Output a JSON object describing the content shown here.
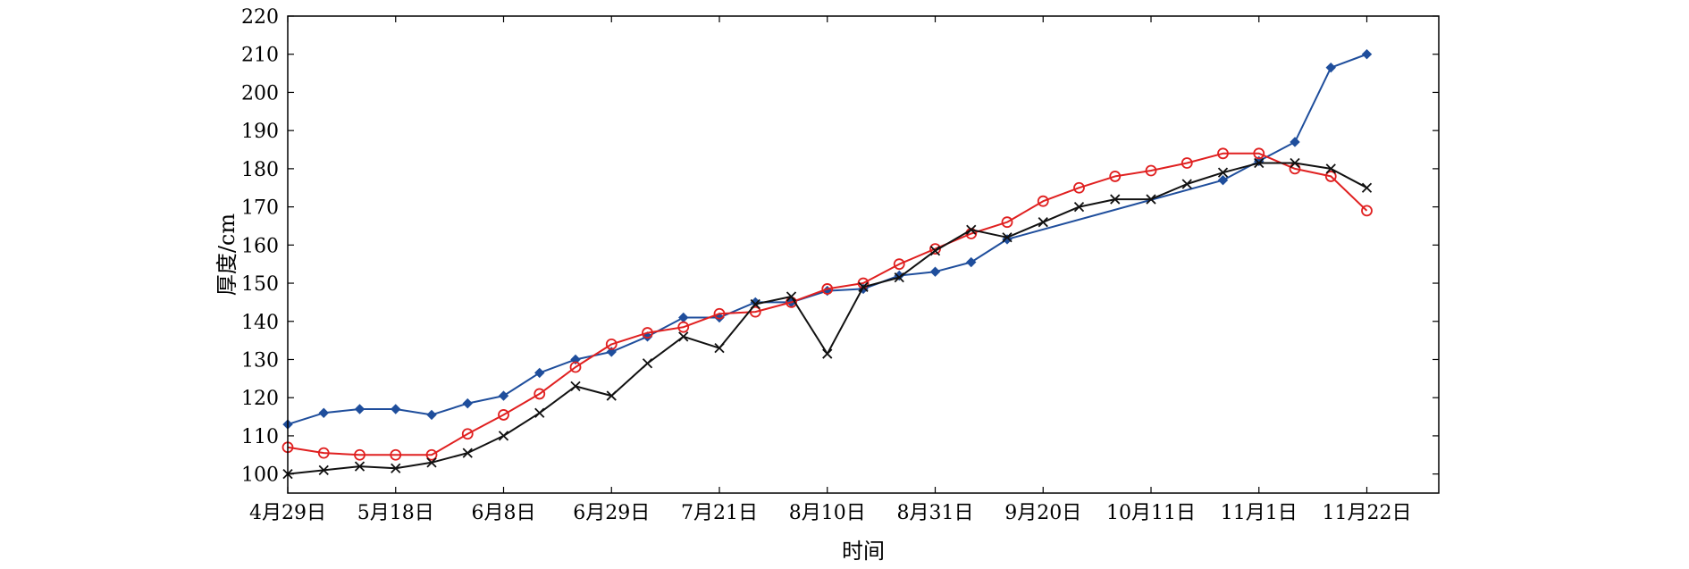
{
  "chart_data": {
    "type": "line",
    "title": "",
    "xlabel": "时间",
    "ylabel": "厚度/cm",
    "ylim": [
      95,
      220
    ],
    "yticks": [
      100,
      110,
      120,
      130,
      140,
      150,
      160,
      170,
      180,
      190,
      200,
      210,
      220
    ],
    "xlim": [
      0,
      32
    ],
    "xticks": [
      {
        "x": 0,
        "label": "4月29日"
      },
      {
        "x": 3,
        "label": "5月18日"
      },
      {
        "x": 6,
        "label": "6月8日"
      },
      {
        "x": 9,
        "label": "6月29日"
      },
      {
        "x": 12,
        "label": "7月21日"
      },
      {
        "x": 15,
        "label": "8月10日"
      },
      {
        "x": 18,
        "label": "8月31日"
      },
      {
        "x": 21,
        "label": "9月20日"
      },
      {
        "x": 24,
        "label": "10月11日"
      },
      {
        "x": 27,
        "label": "11月1日"
      },
      {
        "x": 30,
        "label": "11月22日"
      }
    ],
    "grid": false,
    "series": [
      {
        "color": "#1f4e9c",
        "marker": "filled-diamond",
        "points": [
          [
            0,
            113
          ],
          [
            1,
            116
          ],
          [
            2,
            117
          ],
          [
            3,
            117
          ],
          [
            4,
            115.5
          ],
          [
            5,
            118.5
          ],
          [
            6,
            120.5
          ],
          [
            7,
            126.5
          ],
          [
            8,
            130
          ],
          [
            9,
            132
          ],
          [
            10,
            136
          ],
          [
            11,
            141
          ],
          [
            12,
            141
          ],
          [
            13,
            145
          ],
          [
            14,
            145
          ],
          [
            15,
            148
          ],
          [
            16,
            148.5
          ],
          [
            17,
            152
          ],
          [
            18,
            153
          ],
          [
            19,
            155.5
          ],
          [
            20,
            161.5
          ],
          [
            26,
            177
          ],
          [
            27,
            182
          ],
          [
            28,
            187
          ],
          [
            29,
            206.5
          ],
          [
            30,
            210
          ]
        ]
      },
      {
        "color": "#e02020",
        "marker": "open-circle",
        "points": [
          [
            0,
            107
          ],
          [
            1,
            105.5
          ],
          [
            2,
            105
          ],
          [
            3,
            105
          ],
          [
            4,
            105
          ],
          [
            5,
            110.5
          ],
          [
            6,
            115.5
          ],
          [
            7,
            121
          ],
          [
            8,
            128
          ],
          [
            9,
            134
          ],
          [
            10,
            137
          ],
          [
            11,
            138.5
          ],
          [
            12,
            142
          ],
          [
            13,
            142.5
          ],
          [
            14,
            145
          ],
          [
            15,
            148.5
          ],
          [
            16,
            150
          ],
          [
            17,
            155
          ],
          [
            18,
            159
          ],
          [
            19,
            163
          ],
          [
            20,
            166
          ],
          [
            21,
            171.5
          ],
          [
            22,
            175
          ],
          [
            23,
            178
          ],
          [
            24,
            179.5
          ],
          [
            25,
            181.5
          ],
          [
            26,
            184
          ],
          [
            27,
            184
          ],
          [
            28,
            180
          ],
          [
            29,
            178
          ],
          [
            30,
            169
          ]
        ]
      },
      {
        "color": "#111111",
        "marker": "x-cross",
        "points": [
          [
            0,
            100
          ],
          [
            1,
            101
          ],
          [
            2,
            102
          ],
          [
            3,
            101.5
          ],
          [
            4,
            103
          ],
          [
            5,
            105.5
          ],
          [
            6,
            110
          ],
          [
            7,
            116
          ],
          [
            8,
            123
          ],
          [
            9,
            120.5
          ],
          [
            10,
            129
          ],
          [
            11,
            136
          ],
          [
            12,
            133
          ],
          [
            13,
            144.5
          ],
          [
            14,
            146.5
          ],
          [
            15,
            131.5
          ],
          [
            16,
            149
          ],
          [
            17,
            151.5
          ],
          [
            18,
            158.5
          ],
          [
            19,
            164
          ],
          [
            20,
            162
          ],
          [
            21,
            166
          ],
          [
            22,
            170
          ],
          [
            23,
            172
          ],
          [
            24,
            172
          ],
          [
            25,
            176
          ],
          [
            26,
            179
          ],
          [
            27,
            181.5
          ],
          [
            28,
            181.5
          ],
          [
            29,
            180
          ],
          [
            30,
            175
          ]
        ]
      }
    ]
  }
}
